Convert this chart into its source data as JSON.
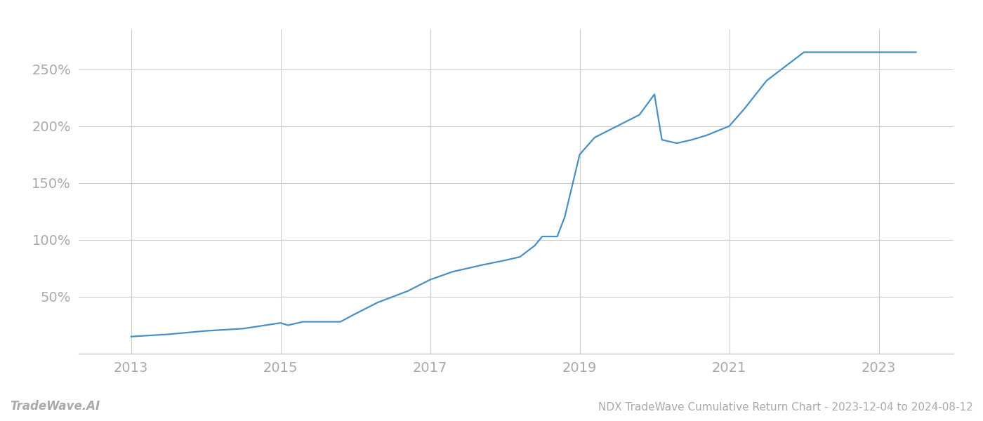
{
  "title": "NDX TradeWave Cumulative Return Chart - 2023-12-04 to 2024-08-12",
  "watermark": "TradeWave.AI",
  "line_color": "#4a90c4",
  "background_color": "#ffffff",
  "grid_color": "#cccccc",
  "x_years": [
    2013,
    2015,
    2017,
    2019,
    2021,
    2023
  ],
  "data_points": [
    [
      2013.0,
      15
    ],
    [
      2013.5,
      17
    ],
    [
      2014.0,
      20
    ],
    [
      2014.5,
      22
    ],
    [
      2015.0,
      27
    ],
    [
      2015.1,
      25
    ],
    [
      2015.3,
      28
    ],
    [
      2015.5,
      28
    ],
    [
      2015.8,
      28
    ],
    [
      2016.0,
      35
    ],
    [
      2016.3,
      45
    ],
    [
      2016.7,
      55
    ],
    [
      2017.0,
      65
    ],
    [
      2017.3,
      72
    ],
    [
      2017.7,
      78
    ],
    [
      2018.0,
      82
    ],
    [
      2018.2,
      85
    ],
    [
      2018.4,
      95
    ],
    [
      2018.5,
      103
    ],
    [
      2018.7,
      103
    ],
    [
      2018.8,
      120
    ],
    [
      2019.0,
      175
    ],
    [
      2019.2,
      190
    ],
    [
      2019.5,
      200
    ],
    [
      2019.8,
      210
    ],
    [
      2020.0,
      228
    ],
    [
      2020.1,
      188
    ],
    [
      2020.3,
      185
    ],
    [
      2020.5,
      188
    ],
    [
      2020.7,
      192
    ],
    [
      2021.0,
      200
    ],
    [
      2021.2,
      215
    ],
    [
      2021.5,
      240
    ],
    [
      2022.0,
      265
    ],
    [
      2022.3,
      265
    ],
    [
      2022.8,
      265
    ],
    [
      2023.0,
      265
    ],
    [
      2023.5,
      265
    ]
  ],
  "ylim": [
    0,
    285
  ],
  "yticks": [
    50,
    100,
    150,
    200,
    250
  ],
  "title_fontsize": 11,
  "watermark_fontsize": 12,
  "tick_fontsize": 14,
  "tick_color": "#aaaaaa",
  "axis_color": "#cccccc",
  "line_width": 1.6,
  "xlim_left": 2012.3,
  "xlim_right": 2024.0
}
